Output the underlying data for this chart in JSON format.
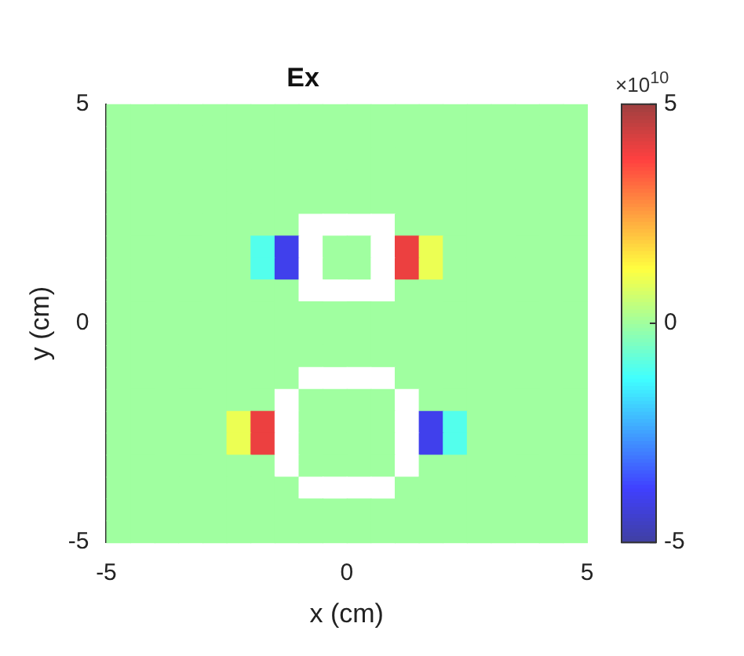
{
  "chart_data": {
    "type": "heatmap",
    "title": "Ex",
    "xlabel": "x (cm)",
    "ylabel": "y (cm)",
    "xlim": [
      -5,
      5
    ],
    "ylim": [
      -5,
      5
    ],
    "xticks": [
      -5,
      0,
      5
    ],
    "yticks": [
      -5,
      0,
      5
    ],
    "clim": [
      -5,
      5
    ],
    "cticks": [
      -5,
      0,
      5
    ],
    "annotations": [
      "×10$^{10}$"
    ],
    "cells": [
      [
        0,
        0,
        0,
        0,
        0,
        0,
        0,
        0,
        0,
        0,
        0,
        0,
        0,
        0,
        0,
        0,
        0,
        0,
        0,
        0
      ],
      [
        0,
        0,
        0,
        0,
        0,
        0,
        0,
        0,
        0,
        0,
        0,
        0,
        0,
        0,
        0,
        0,
        0,
        0,
        0,
        0
      ],
      [
        0,
        0,
        0,
        0,
        0,
        0,
        0,
        0,
        0,
        0,
        0,
        0,
        0,
        0,
        0,
        0,
        0,
        0,
        0,
        0
      ],
      [
        0,
        0,
        0,
        0,
        0,
        0,
        0,
        0,
        0,
        0,
        0,
        0,
        0,
        0,
        0,
        0,
        0,
        0,
        0,
        0
      ],
      [
        0,
        0,
        0,
        0,
        0,
        0,
        0,
        0,
        0,
        0,
        0,
        0,
        0,
        0,
        0,
        0,
        0,
        0,
        0,
        0
      ],
      [
        0,
        0,
        0,
        0,
        0,
        0,
        0,
        0,
        null,
        null,
        null,
        null,
        0,
        0,
        0,
        0,
        0,
        0,
        0,
        0
      ],
      [
        0,
        0,
        0,
        0,
        0,
        0,
        -1,
        -4,
        null,
        0,
        0,
        null,
        4,
        1,
        0,
        0,
        0,
        0,
        0,
        0
      ],
      [
        0,
        0,
        0,
        0,
        0,
        0,
        -1,
        -4,
        null,
        0,
        0,
        null,
        4,
        1,
        0,
        0,
        0,
        0,
        0,
        0
      ],
      [
        0,
        0,
        0,
        0,
        0,
        0,
        0,
        0,
        null,
        null,
        null,
        null,
        0,
        0,
        0,
        0,
        0,
        0,
        0,
        0
      ],
      [
        0,
        0,
        0,
        0,
        0,
        0,
        0,
        0,
        0,
        0,
        0,
        0,
        0,
        0,
        0,
        0,
        0,
        0,
        0,
        0
      ],
      [
        0,
        0,
        0,
        0,
        0,
        0,
        0,
        0,
        0,
        0,
        0,
        0,
        0,
        0,
        0,
        0,
        0,
        0,
        0,
        0
      ],
      [
        0,
        0,
        0,
        0,
        0,
        0,
        0,
        0,
        0,
        0,
        0,
        0,
        0,
        0,
        0,
        0,
        0,
        0,
        0,
        0
      ],
      [
        0,
        0,
        0,
        0,
        0,
        0,
        0,
        0,
        null,
        null,
        null,
        null,
        0,
        0,
        0,
        0,
        0,
        0,
        0,
        0
      ],
      [
        0,
        0,
        0,
        0,
        0,
        0,
        0,
        null,
        0,
        0,
        0,
        0,
        null,
        0,
        0,
        0,
        0,
        0,
        0,
        0
      ],
      [
        0,
        0,
        0,
        0,
        0,
        1,
        4,
        null,
        0,
        0,
        0,
        0,
        null,
        -4,
        -1,
        0,
        0,
        0,
        0,
        0
      ],
      [
        0,
        0,
        0,
        0,
        0,
        1,
        4,
        null,
        0,
        0,
        0,
        0,
        null,
        -4,
        -1,
        0,
        0,
        0,
        0,
        0
      ],
      [
        0,
        0,
        0,
        0,
        0,
        0,
        0,
        null,
        0,
        0,
        0,
        0,
        null,
        0,
        0,
        0,
        0,
        0,
        0,
        0
      ],
      [
        0,
        0,
        0,
        0,
        0,
        0,
        0,
        0,
        null,
        null,
        null,
        null,
        0,
        0,
        0,
        0,
        0,
        0,
        0,
        0
      ],
      [
        0,
        0,
        0,
        0,
        0,
        0,
        0,
        0,
        0,
        0,
        0,
        0,
        0,
        0,
        0,
        0,
        0,
        0,
        0,
        0
      ],
      [
        0,
        0,
        0,
        0,
        0,
        0,
        0,
        0,
        0,
        0,
        0,
        0,
        0,
        0,
        0,
        0,
        0,
        0,
        0,
        0
      ]
    ]
  }
}
